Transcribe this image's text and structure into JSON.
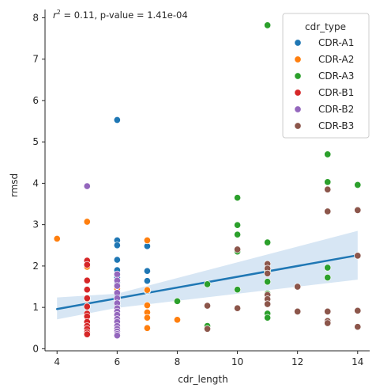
{
  "chart_data": {
    "type": "scatter",
    "xlabel": "cdr_length",
    "ylabel": "rmsd",
    "xlim": [
      3.6,
      14.4
    ],
    "ylim": [
      -0.05,
      8.2
    ],
    "x_ticks": [
      4,
      6,
      8,
      10,
      12,
      14
    ],
    "y_ticks": [
      0,
      1,
      2,
      3,
      4,
      5,
      6,
      7,
      8
    ],
    "annotation": {
      "r2_symbol": "r",
      "r2_exponent": "2",
      "text": " =  0.11, p-value =  1.41e-04"
    },
    "legend": {
      "title": "cdr_type",
      "placement": "top-right"
    },
    "series": [
      {
        "name": "CDR-A1",
        "color": "#1f77b4",
        "points": [
          [
            6,
            5.53
          ],
          [
            6,
            2.62
          ],
          [
            6,
            2.5
          ],
          [
            6,
            2.15
          ],
          [
            6,
            1.9
          ],
          [
            6,
            1.72
          ],
          [
            6,
            1.6
          ],
          [
            6,
            1.5
          ],
          [
            6,
            1.4
          ],
          [
            6,
            1.3
          ],
          [
            6,
            1.2
          ],
          [
            6,
            1.05
          ],
          [
            7,
            2.48
          ],
          [
            7,
            1.88
          ],
          [
            7,
            1.64
          ],
          [
            7,
            1.4
          ]
        ]
      },
      {
        "name": "CDR-A2",
        "color": "#ff7f0e",
        "points": [
          [
            4,
            2.66
          ],
          [
            5,
            3.07
          ],
          [
            5,
            1.98
          ],
          [
            5,
            1.2
          ],
          [
            6,
            1.45
          ],
          [
            7,
            2.62
          ],
          [
            7,
            1.42
          ],
          [
            7,
            1.05
          ],
          [
            7,
            0.88
          ],
          [
            7,
            0.75
          ],
          [
            7,
            0.5
          ],
          [
            8,
            0.7
          ]
        ]
      },
      {
        "name": "CDR-A3",
        "color": "#2ca02c",
        "points": [
          [
            8,
            1.15
          ],
          [
            9,
            1.56
          ],
          [
            9,
            0.55
          ],
          [
            10,
            3.65
          ],
          [
            10,
            2.99
          ],
          [
            10,
            2.76
          ],
          [
            10,
            2.35
          ],
          [
            10,
            1.43
          ],
          [
            11,
            7.82
          ],
          [
            11,
            2.57
          ],
          [
            11,
            1.88
          ],
          [
            11,
            1.62
          ],
          [
            11,
            1.33
          ],
          [
            11,
            0.85
          ],
          [
            11,
            0.75
          ],
          [
            13,
            4.7
          ],
          [
            13,
            4.03
          ],
          [
            13,
            1.96
          ],
          [
            13,
            1.72
          ],
          [
            14,
            3.96
          ]
        ]
      },
      {
        "name": "CDR-B1",
        "color": "#d62728",
        "points": [
          [
            5,
            2.13
          ],
          [
            5,
            2.03
          ],
          [
            5,
            1.65
          ],
          [
            5,
            1.43
          ],
          [
            5,
            1.22
          ],
          [
            5,
            1.02
          ],
          [
            5,
            0.85
          ],
          [
            5,
            0.78
          ],
          [
            5,
            0.65
          ],
          [
            5,
            0.55
          ],
          [
            5,
            0.48
          ],
          [
            5,
            0.4
          ],
          [
            5,
            0.35
          ]
        ]
      },
      {
        "name": "CDR-B2",
        "color": "#9467bd",
        "points": [
          [
            5,
            3.93
          ],
          [
            6,
            1.8
          ],
          [
            6,
            1.65
          ],
          [
            6,
            1.52
          ],
          [
            6,
            1.35
          ],
          [
            6,
            1.22
          ],
          [
            6,
            1.1
          ],
          [
            6,
            0.98
          ],
          [
            6,
            0.9
          ],
          [
            6,
            0.82
          ],
          [
            6,
            0.72
          ],
          [
            6,
            0.65
          ],
          [
            6,
            0.55
          ],
          [
            6,
            0.48
          ],
          [
            6,
            0.42
          ],
          [
            6,
            0.36
          ],
          [
            6,
            0.32
          ]
        ]
      },
      {
        "name": "CDR-B3",
        "color": "#8c564b",
        "points": [
          [
            9,
            1.04
          ],
          [
            9,
            0.48
          ],
          [
            10,
            2.4
          ],
          [
            10,
            0.98
          ],
          [
            11,
            2.05
          ],
          [
            11,
            1.94
          ],
          [
            11,
            1.82
          ],
          [
            11,
            1.3
          ],
          [
            11,
            1.2
          ],
          [
            11,
            1.08
          ],
          [
            12,
            1.5
          ],
          [
            12,
            0.9
          ],
          [
            13,
            3.85
          ],
          [
            13,
            3.32
          ],
          [
            13,
            0.9
          ],
          [
            13,
            0.67
          ],
          [
            13,
            0.62
          ],
          [
            14,
            3.35
          ],
          [
            14,
            2.25
          ],
          [
            14,
            0.92
          ],
          [
            14,
            0.53
          ]
        ]
      }
    ],
    "regression": {
      "color": "#1f77b4",
      "ci_color": "#c6dbef",
      "x": [
        4,
        14
      ],
      "y": [
        0.96,
        2.26
      ],
      "ci_lower": [
        0.71,
        1.67
      ],
      "ci_upper": [
        1.24,
        2.85
      ],
      "ci_mid": [
        6,
        1.22,
        0.99,
        1.33
      ]
    }
  }
}
